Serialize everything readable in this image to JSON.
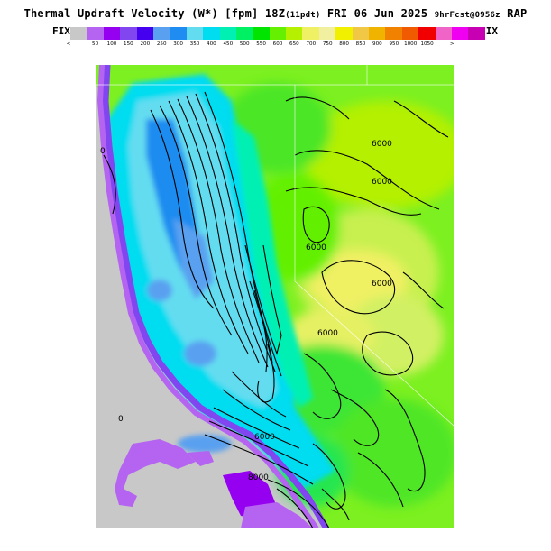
{
  "header": {
    "title_main": "Thermal Updraft Velocity (W*) [fpm] 18Z",
    "title_paren": "(11pdt)",
    "title_date": " FRI 06 Jun 2025 ",
    "title_fcst": "9hrFcst@0956z",
    "title_model": " RAP"
  },
  "legend": {
    "fix_left": "FIX",
    "fix_right": "FIX",
    "less_glyph": "<",
    "greater_glyph": ">",
    "colors": [
      "#c8c8c8",
      "#b464f0",
      "#9600f0",
      "#8246f0",
      "#4600f0",
      "#5aa0f0",
      "#1e8cf0",
      "#64dcf0",
      "#00dcf0",
      "#00f0b4",
      "#00f064",
      "#00e400",
      "#64f000",
      "#b4f000",
      "#f0f064",
      "#f0f0a0",
      "#f0f000",
      "#f0c846",
      "#f0b400",
      "#f08200",
      "#f05a00",
      "#f00000",
      "#f064c8",
      "#f000f0",
      "#c800b4"
    ],
    "tick_labels": [
      "50",
      "100",
      "150",
      "200",
      "250",
      "300",
      "350",
      "400",
      "450",
      "500",
      "550",
      "600",
      "650",
      "700",
      "750",
      "800",
      "850",
      "900",
      "950",
      "1000",
      "1050"
    ]
  },
  "map": {
    "contour_labels": [
      "0",
      "0",
      "6000",
      "6000",
      "6000",
      "6000",
      "6000",
      "6000",
      "8000"
    ]
  }
}
